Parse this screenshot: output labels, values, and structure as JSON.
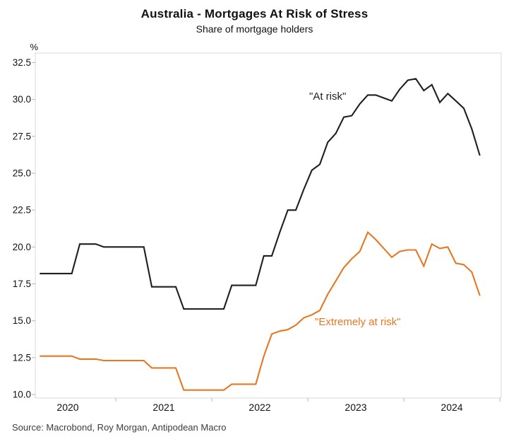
{
  "chart_data": {
    "type": "line",
    "title": "Australia - Mortgages At Risk of Stress",
    "subtitle": "Share of mortgage holders",
    "unit_label": "%",
    "source": "Source: Macrobond, Roy Morgan, Antipodean Macro",
    "grid": false,
    "legend_position": "inline-annotations",
    "xlim": [
      2020.16,
      2025.02
    ],
    "ylim": [
      9.75,
      33.15
    ],
    "x_year_labels": [
      {
        "label": "2020",
        "t": 2020.5
      },
      {
        "label": "2021",
        "t": 2021.5
      },
      {
        "label": "2022",
        "t": 2022.5
      },
      {
        "label": "2023",
        "t": 2023.5
      },
      {
        "label": "2024",
        "t": 2024.5
      }
    ],
    "x_boundary_ticks": [
      2021,
      2022,
      2023,
      2024,
      2025
    ],
    "y_ticks": [
      {
        "v": 10.0,
        "label": "10.0"
      },
      {
        "v": 12.5,
        "label": "12.5"
      },
      {
        "v": 15.0,
        "label": "15.0"
      },
      {
        "v": 17.5,
        "label": "17.5"
      },
      {
        "v": 20.0,
        "label": "20.0"
      },
      {
        "v": 22.5,
        "label": "22.5"
      },
      {
        "v": 25.0,
        "label": "25.0"
      },
      {
        "v": 27.5,
        "label": "27.5"
      },
      {
        "v": 30.0,
        "label": "30.0"
      },
      {
        "v": 32.5,
        "label": "32.5"
      }
    ],
    "series": [
      {
        "name": "At risk",
        "label": "\"At risk\"",
        "color": "#1f1f1f",
        "points": [
          [
            2020.208,
            18.2
          ],
          [
            2020.292,
            18.2
          ],
          [
            2020.375,
            18.2
          ],
          [
            2020.458,
            18.2
          ],
          [
            2020.542,
            18.2
          ],
          [
            2020.625,
            20.2
          ],
          [
            2020.708,
            20.2
          ],
          [
            2020.792,
            20.2
          ],
          [
            2020.875,
            20.0
          ],
          [
            2020.958,
            20.0
          ],
          [
            2021.042,
            20.0
          ],
          [
            2021.125,
            20.0
          ],
          [
            2021.208,
            20.0
          ],
          [
            2021.292,
            20.0
          ],
          [
            2021.375,
            17.3
          ],
          [
            2021.458,
            17.3
          ],
          [
            2021.542,
            17.3
          ],
          [
            2021.625,
            17.3
          ],
          [
            2021.708,
            15.8
          ],
          [
            2021.792,
            15.8
          ],
          [
            2021.875,
            15.8
          ],
          [
            2021.958,
            15.8
          ],
          [
            2022.042,
            15.8
          ],
          [
            2022.125,
            15.8
          ],
          [
            2022.208,
            17.4
          ],
          [
            2022.292,
            17.4
          ],
          [
            2022.375,
            17.4
          ],
          [
            2022.458,
            17.4
          ],
          [
            2022.542,
            19.4
          ],
          [
            2022.625,
            19.4
          ],
          [
            2022.708,
            21.0
          ],
          [
            2022.792,
            22.5
          ],
          [
            2022.875,
            22.5
          ],
          [
            2022.958,
            23.9
          ],
          [
            2023.042,
            25.2
          ],
          [
            2023.125,
            25.6
          ],
          [
            2023.208,
            27.1
          ],
          [
            2023.292,
            27.7
          ],
          [
            2023.375,
            28.8
          ],
          [
            2023.458,
            28.9
          ],
          [
            2023.542,
            29.7
          ],
          [
            2023.625,
            30.3
          ],
          [
            2023.708,
            30.3
          ],
          [
            2023.792,
            30.1
          ],
          [
            2023.875,
            29.9
          ],
          [
            2023.958,
            30.7
          ],
          [
            2024.042,
            31.3
          ],
          [
            2024.125,
            31.4
          ],
          [
            2024.208,
            30.6
          ],
          [
            2024.292,
            31.0
          ],
          [
            2024.375,
            29.8
          ],
          [
            2024.458,
            30.4
          ],
          [
            2024.542,
            29.9
          ],
          [
            2024.625,
            29.4
          ],
          [
            2024.708,
            28.0
          ],
          [
            2024.792,
            26.2
          ]
        ]
      },
      {
        "name": "Extremely at risk",
        "label": "\"Extremely at risk\"",
        "color": "#e87722",
        "points": [
          [
            2020.208,
            12.6
          ],
          [
            2020.292,
            12.6
          ],
          [
            2020.375,
            12.6
          ],
          [
            2020.458,
            12.6
          ],
          [
            2020.542,
            12.6
          ],
          [
            2020.625,
            12.4
          ],
          [
            2020.708,
            12.4
          ],
          [
            2020.792,
            12.4
          ],
          [
            2020.875,
            12.3
          ],
          [
            2020.958,
            12.3
          ],
          [
            2021.042,
            12.3
          ],
          [
            2021.125,
            12.3
          ],
          [
            2021.208,
            12.3
          ],
          [
            2021.292,
            12.3
          ],
          [
            2021.375,
            11.8
          ],
          [
            2021.458,
            11.8
          ],
          [
            2021.542,
            11.8
          ],
          [
            2021.625,
            11.8
          ],
          [
            2021.708,
            10.3
          ],
          [
            2021.792,
            10.3
          ],
          [
            2021.875,
            10.3
          ],
          [
            2021.958,
            10.3
          ],
          [
            2022.042,
            10.3
          ],
          [
            2022.125,
            10.3
          ],
          [
            2022.208,
            10.7
          ],
          [
            2022.292,
            10.7
          ],
          [
            2022.375,
            10.7
          ],
          [
            2022.458,
            10.7
          ],
          [
            2022.542,
            12.6
          ],
          [
            2022.625,
            14.1
          ],
          [
            2022.708,
            14.3
          ],
          [
            2022.792,
            14.4
          ],
          [
            2022.875,
            14.7
          ],
          [
            2022.958,
            15.2
          ],
          [
            2023.042,
            15.4
          ],
          [
            2023.125,
            15.7
          ],
          [
            2023.208,
            16.8
          ],
          [
            2023.292,
            17.7
          ],
          [
            2023.375,
            18.6
          ],
          [
            2023.458,
            19.2
          ],
          [
            2023.542,
            19.7
          ],
          [
            2023.625,
            21.0
          ],
          [
            2023.708,
            20.5
          ],
          [
            2023.792,
            19.9
          ],
          [
            2023.875,
            19.3
          ],
          [
            2023.958,
            19.7
          ],
          [
            2024.042,
            19.8
          ],
          [
            2024.125,
            19.8
          ],
          [
            2024.208,
            18.7
          ],
          [
            2024.292,
            20.2
          ],
          [
            2024.375,
            19.9
          ],
          [
            2024.458,
            20.0
          ],
          [
            2024.542,
            18.9
          ],
          [
            2024.625,
            18.8
          ],
          [
            2024.708,
            18.3
          ],
          [
            2024.792,
            16.7
          ]
        ]
      }
    ],
    "frame_color": "#d9d9d9",
    "tick_color": "#b5b5b5"
  }
}
